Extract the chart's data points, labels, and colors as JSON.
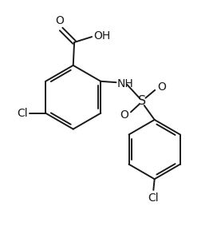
{
  "background_color": "#ffffff",
  "line_color": "#1a1a1a",
  "line_width": 1.4,
  "font_size": 9.5,
  "figsize": [
    2.77,
    2.93
  ],
  "dpi": 100,
  "xlim": [
    0,
    10
  ],
  "ylim": [
    0,
    10.6
  ]
}
